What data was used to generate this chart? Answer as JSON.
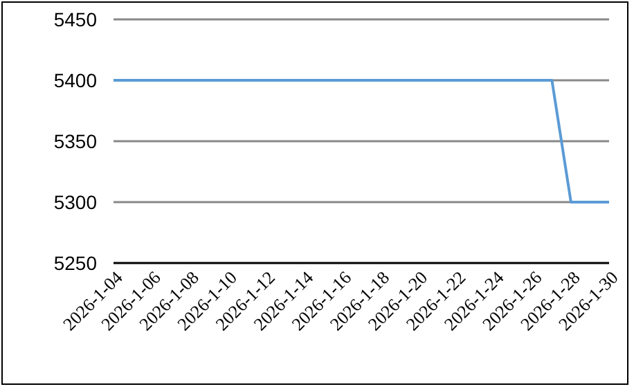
{
  "chart_data": {
    "type": "line",
    "x": [
      "2026-01-04",
      "2026-01-27",
      "2026-01-28",
      "2026-01-30"
    ],
    "series": [
      {
        "color": "#5b9bd5",
        "values": [
          5400,
          5400,
          5300,
          5300
        ]
      }
    ],
    "xlim": [
      "2026-01-04",
      "2026-01-30"
    ],
    "xticks": [
      {
        "value": "2026-01-04",
        "label": "2026-1-04"
      },
      {
        "value": "2026-01-06",
        "label": "2026-1-06"
      },
      {
        "value": "2026-01-08",
        "label": "2026-1-08"
      },
      {
        "value": "2026-01-10",
        "label": "2026-1-10"
      },
      {
        "value": "2026-01-12",
        "label": "2026-1-12"
      },
      {
        "value": "2026-01-14",
        "label": "2026-1-14"
      },
      {
        "value": "2026-01-16",
        "label": "2026-1-16"
      },
      {
        "value": "2026-01-18",
        "label": "2026-1-18"
      },
      {
        "value": "2026-01-20",
        "label": "2026-1-20"
      },
      {
        "value": "2026-01-22",
        "label": "2026-1-22"
      },
      {
        "value": "2026-01-24",
        "label": "2026-1-24"
      },
      {
        "value": "2026-01-26",
        "label": "2026-1-26"
      },
      {
        "value": "2026-01-28",
        "label": "2026-1-28"
      },
      {
        "value": "2026-01-30",
        "label": "2026-1-30"
      }
    ],
    "ylim": [
      5250,
      5450
    ],
    "yticks": [
      5250,
      5300,
      5350,
      5400,
      5450
    ],
    "grid": "y",
    "marker": "none",
    "line_style": "solid"
  }
}
